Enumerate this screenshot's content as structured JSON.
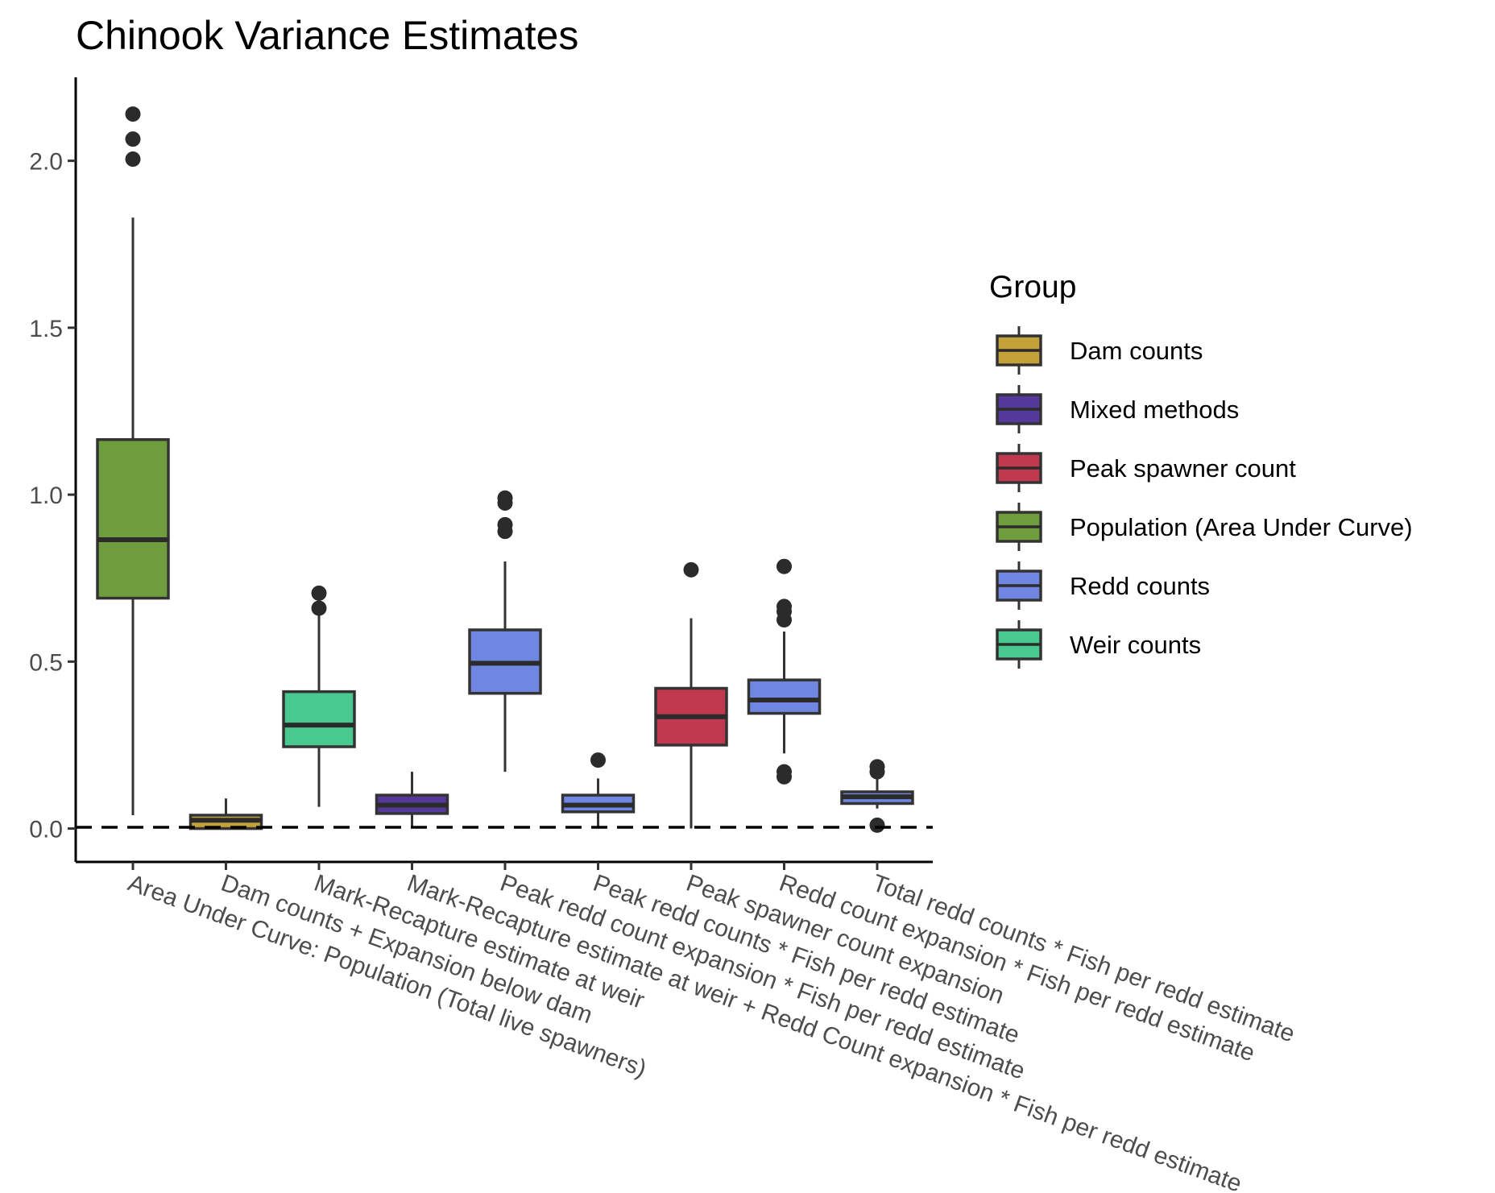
{
  "chart_data": {
    "type": "box",
    "title": "Chinook Variance Estimates",
    "xlabel": "",
    "ylabel": "",
    "ylim": [
      -0.1,
      2.25
    ],
    "yticks": [
      0.0,
      0.5,
      1.0,
      1.5,
      2.0
    ],
    "ytick_labels": [
      "0.0",
      "0.5",
      "1.0",
      "1.5",
      "2.0"
    ],
    "grid": false,
    "reference_line": {
      "y": 0,
      "style": "dashed"
    },
    "legend": {
      "title": "Group",
      "position": "right",
      "entries": [
        {
          "name": "Dam counts",
          "color": "#c4a23a"
        },
        {
          "name": "Mixed methods",
          "color": "#55399a"
        },
        {
          "name": "Peak spawner count",
          "color": "#c0394f"
        },
        {
          "name": "Population (Area Under Curve)",
          "color": "#6f9d3e"
        },
        {
          "name": "Redd counts",
          "color": "#6f87e0"
        },
        {
          "name": "Weir counts",
          "color": "#48c98f"
        }
      ]
    },
    "categories": [
      "Area Under Curve: Population (Total live spawners)",
      "Dam counts + Expansion below dam",
      "Mark-Recapture estimate at weir",
      "Mark-Recapture estimate at weir + Redd Count expansion * Fish per redd estimate",
      "Peak redd count expansion * Fish per redd estimate",
      "Peak redd counts * Fish per redd estimate",
      "Peak spawner count expansion",
      "Redd count expansion * Fish per redd estimate",
      "Total redd counts * Fish per redd estimate"
    ],
    "boxes": [
      {
        "category": "Area Under Curve: Population (Total live spawners)",
        "group": "Population (Area Under Curve)",
        "whisker_low": 0.04,
        "q1": 0.69,
        "median": 0.865,
        "q3": 1.165,
        "whisker_high": 1.83,
        "outliers": [
          2.005,
          2.065,
          2.14
        ]
      },
      {
        "category": "Dam counts + Expansion below dam",
        "group": "Dam counts",
        "whisker_low": 0.0,
        "q1": 0.0,
        "median": 0.025,
        "q3": 0.04,
        "whisker_high": 0.09,
        "outliers": []
      },
      {
        "category": "Mark-Recapture estimate at weir",
        "group": "Weir counts",
        "whisker_low": 0.065,
        "q1": 0.245,
        "median": 0.31,
        "q3": 0.41,
        "whisker_high": 0.65,
        "outliers": [
          0.66,
          0.705
        ]
      },
      {
        "category": "Mark-Recapture estimate at weir + Redd Count expansion * Fish per redd estimate",
        "group": "Mixed methods",
        "whisker_low": 0.0,
        "q1": 0.045,
        "median": 0.07,
        "q3": 0.1,
        "whisker_high": 0.17,
        "outliers": []
      },
      {
        "category": "Peak redd count expansion * Fish per redd estimate",
        "group": "Redd counts",
        "whisker_low": 0.17,
        "q1": 0.405,
        "median": 0.495,
        "q3": 0.595,
        "whisker_high": 0.8,
        "outliers": [
          0.89,
          0.91,
          0.975,
          0.99
        ]
      },
      {
        "category": "Peak redd counts * Fish per redd estimate",
        "group": "Redd counts",
        "whisker_low": 0.0,
        "q1": 0.05,
        "median": 0.07,
        "q3": 0.1,
        "whisker_high": 0.15,
        "outliers": [
          0.205
        ]
      },
      {
        "category": "Peak spawner count expansion",
        "group": "Peak spawner count",
        "whisker_low": 0.0,
        "q1": 0.25,
        "median": 0.335,
        "q3": 0.42,
        "whisker_high": 0.63,
        "outliers": [
          0.775
        ]
      },
      {
        "category": "Redd count expansion * Fish per redd estimate",
        "group": "Redd counts",
        "whisker_low": 0.225,
        "q1": 0.345,
        "median": 0.385,
        "q3": 0.445,
        "whisker_high": 0.59,
        "outliers": [
          0.155,
          0.17,
          0.625,
          0.65,
          0.665,
          0.785
        ]
      },
      {
        "category": "Total redd counts * Fish per redd estimate",
        "group": "Redd counts",
        "whisker_low": 0.06,
        "q1": 0.075,
        "median": 0.095,
        "q3": 0.11,
        "whisker_high": 0.16,
        "outliers": [
          0.01,
          0.17,
          0.185
        ]
      }
    ]
  }
}
